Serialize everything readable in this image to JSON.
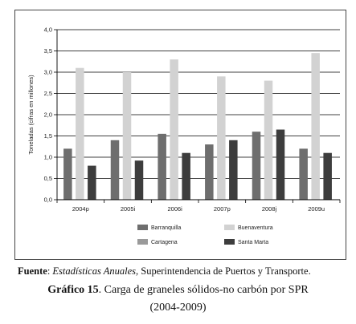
{
  "chart_data": {
    "type": "bar",
    "categories": [
      "2004p",
      "2005i",
      "2006i",
      "2007p",
      "2008j",
      "2009u"
    ],
    "series": [
      {
        "name": "Barranquilla",
        "color": "#6e6e6e",
        "values": [
          1.2,
          1.4,
          1.55,
          1.3,
          1.6,
          1.2
        ]
      },
      {
        "name": "Buenaventura",
        "color": "#d2d2d2",
        "values": [
          3.1,
          3.0,
          3.3,
          2.9,
          2.8,
          3.45
        ]
      },
      {
        "name": "Cartagena",
        "color": "#9a9a9a",
        "values": [
          0,
          0,
          0,
          0,
          0,
          0
        ]
      },
      {
        "name": "Santa Marta",
        "color": "#3d3d3d",
        "values": [
          0.8,
          0.92,
          1.1,
          1.4,
          1.65,
          1.1
        ]
      }
    ],
    "ylabel": "Toneladas (cifras en millones)",
    "ylim": [
      0,
      4
    ],
    "yticks": [
      "0,0",
      "0,5",
      "1,0",
      "1,5",
      "2,0",
      "2,5",
      "3,0",
      "3,5",
      "4,0"
    ],
    "grid": true,
    "legend_position": "bottom"
  },
  "source": {
    "prefix": "Fuente",
    "italic": "Estadísticas Anuales",
    "rest": ", Superintendencia de Puertos y Transporte."
  },
  "figure": {
    "label": "Gráfico 15",
    "title": ". Carga de graneles sólidos-no carbón por SPR",
    "years": "(2004-2009)"
  }
}
